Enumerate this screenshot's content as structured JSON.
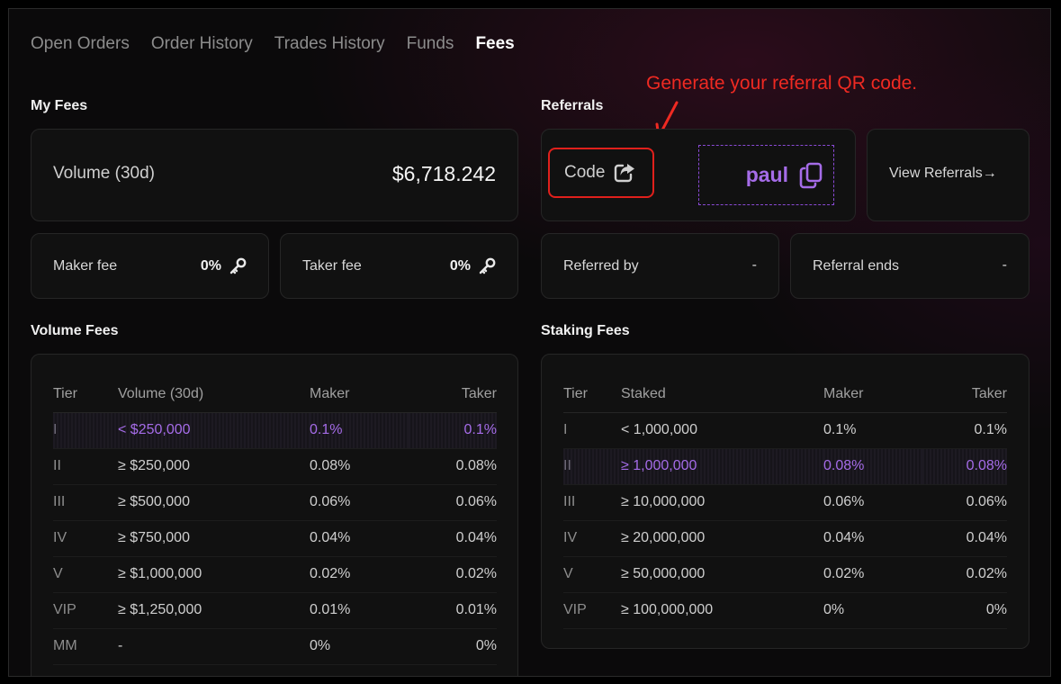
{
  "tabs": [
    {
      "label": "Open Orders",
      "active": false
    },
    {
      "label": "Order History",
      "active": false
    },
    {
      "label": "Trades History",
      "active": false
    },
    {
      "label": "Funds",
      "active": false
    },
    {
      "label": "Fees",
      "active": true
    }
  ],
  "annotation": "Generate your referral QR code.",
  "my_fees": {
    "title": "My Fees",
    "volume_label": "Volume (30d)",
    "volume_value": "$6,718.242",
    "maker_label": "Maker fee",
    "maker_value": "0%",
    "taker_label": "Taker fee",
    "taker_value": "0%"
  },
  "referrals": {
    "title": "Referrals",
    "code_label": "Code",
    "code_value": "paul",
    "view_label": "View Referrals",
    "referred_by_label": "Referred by",
    "referred_by_value": "-",
    "ends_label": "Referral ends",
    "ends_value": "-"
  },
  "volume_fees": {
    "title": "Volume Fees",
    "headers": [
      "Tier",
      "Volume (30d)",
      "Maker",
      "Taker"
    ],
    "rows": [
      {
        "tier": "I",
        "range": "< $250,000",
        "maker": "0.1%",
        "taker": "0.1%",
        "highlight": true
      },
      {
        "tier": "II",
        "range": "≥ $250,000",
        "maker": "0.08%",
        "taker": "0.08%",
        "highlight": false
      },
      {
        "tier": "III",
        "range": "≥ $500,000",
        "maker": "0.06%",
        "taker": "0.06%",
        "highlight": false
      },
      {
        "tier": "IV",
        "range": "≥ $750,000",
        "maker": "0.04%",
        "taker": "0.04%",
        "highlight": false
      },
      {
        "tier": "V",
        "range": "≥ $1,000,000",
        "maker": "0.02%",
        "taker": "0.02%",
        "highlight": false
      },
      {
        "tier": "VIP",
        "range": "≥ $1,250,000",
        "maker": "0.01%",
        "taker": "0.01%",
        "highlight": false
      },
      {
        "tier": "MM",
        "range": "-",
        "maker": "0%",
        "taker": "0%",
        "highlight": false
      }
    ]
  },
  "staking_fees": {
    "title": "Staking Fees",
    "headers": [
      "Tier",
      "Staked",
      "Maker",
      "Taker"
    ],
    "rows": [
      {
        "tier": "I",
        "range": "< 1,000,000",
        "maker": "0.1%",
        "taker": "0.1%",
        "highlight": false
      },
      {
        "tier": "II",
        "range": "≥ 1,000,000",
        "maker": "0.08%",
        "taker": "0.08%",
        "highlight": true
      },
      {
        "tier": "III",
        "range": "≥ 10,000,000",
        "maker": "0.06%",
        "taker": "0.06%",
        "highlight": false
      },
      {
        "tier": "IV",
        "range": "≥ 20,000,000",
        "maker": "0.04%",
        "taker": "0.04%",
        "highlight": false
      },
      {
        "tier": "V",
        "range": "≥ 50,000,000",
        "maker": "0.02%",
        "taker": "0.02%",
        "highlight": false
      },
      {
        "tier": "VIP",
        "range": "≥ 100,000,000",
        "maker": "0%",
        "taker": "0%",
        "highlight": false
      }
    ]
  },
  "colors": {
    "accent": "#a56ce8",
    "annotation": "#ef2a22"
  }
}
